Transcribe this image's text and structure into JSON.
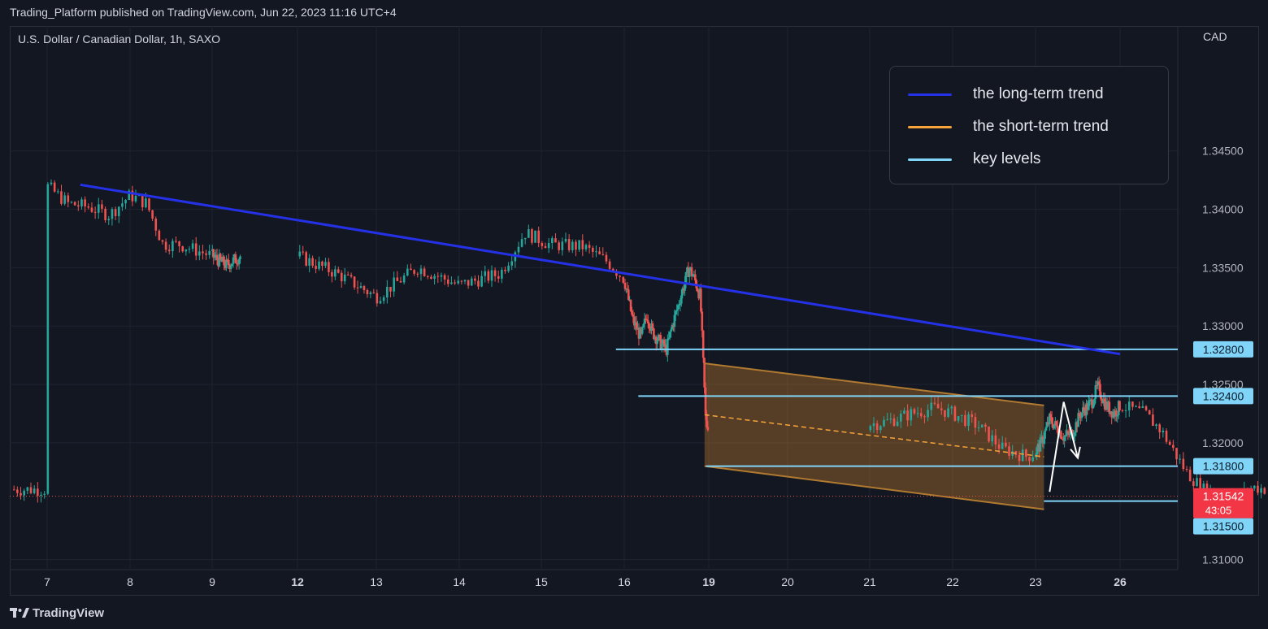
{
  "header": {
    "publisher": "Trading_Platform published on TradingView.com, Jun 22, 2023 11:16 UTC+4"
  },
  "symbol": {
    "title": "U.S. Dollar / Canadian Dollar, 1h, SAXO"
  },
  "axis": {
    "currency": "CAD"
  },
  "legend": {
    "items": [
      {
        "label": "the long-term trend",
        "color": "#2431e6"
      },
      {
        "label": "the short-term trend",
        "color": "#f7a33a"
      },
      {
        "label": "key levels",
        "color": "#7fd4f8"
      }
    ]
  },
  "footer": {
    "brand": "TradingView",
    "logo_icon": "tradingview-logo-icon"
  },
  "chart_data": {
    "type": "candlestick",
    "y_ticks": [
      "1.34500",
      "1.34000",
      "1.33500",
      "1.33000",
      "1.32500",
      "1.32000",
      "1.31000"
    ],
    "y_range": [
      1.3092,
      1.3557
    ],
    "x_ticks": [
      {
        "label": "7",
        "bold": false
      },
      {
        "label": "8",
        "bold": false
      },
      {
        "label": "9",
        "bold": false
      },
      {
        "label": "12",
        "bold": true
      },
      {
        "label": "13",
        "bold": false
      },
      {
        "label": "14",
        "bold": false
      },
      {
        "label": "15",
        "bold": false
      },
      {
        "label": "16",
        "bold": false
      },
      {
        "label": "19",
        "bold": true
      },
      {
        "label": "20",
        "bold": false
      },
      {
        "label": "21",
        "bold": false
      },
      {
        "label": "22",
        "bold": false
      },
      {
        "label": "23",
        "bold": false
      },
      {
        "label": "26",
        "bold": true
      }
    ],
    "price_path": [
      [
        7,
        1.342
      ],
      [
        7.25,
        1.3405
      ],
      [
        7.5,
        1.3402
      ],
      [
        7.75,
        1.3395
      ],
      [
        8,
        1.3412
      ],
      [
        8.2,
        1.3405
      ],
      [
        8.4,
        1.337
      ],
      [
        8.6,
        1.337
      ],
      [
        9,
        1.336
      ],
      [
        9.5,
        1.3352
      ],
      [
        10,
        1.336
      ],
      [
        10.5,
        1.3345
      ],
      [
        11,
        1.3325
      ],
      [
        11.5,
        1.335
      ],
      [
        12,
        1.3335
      ],
      [
        12.5,
        1.3345
      ],
      [
        12.8,
        1.338
      ],
      [
        13.1,
        1.337
      ],
      [
        13.5,
        1.3368
      ],
      [
        13.8,
        1.3355
      ],
      [
        14,
        1.334
      ],
      [
        14.3,
        1.3305
      ],
      [
        14.6,
        1.329
      ],
      [
        14.8,
        1.331
      ],
      [
        15,
        1.3295
      ],
      [
        15.3,
        1.3285
      ],
      [
        15.5,
        1.328
      ],
      [
        15.7,
        1.33
      ],
      [
        16,
        1.3325
      ],
      [
        16.3,
        1.335
      ],
      [
        16.5,
        1.334
      ],
      [
        16.7,
        1.3325
      ],
      [
        16.9,
        1.3215
      ],
      [
        17.2,
        1.3218
      ],
      [
        17.5,
        1.3225
      ],
      [
        17.8,
        1.323
      ],
      [
        18,
        1.3225
      ],
      [
        18.3,
        1.3215
      ],
      [
        18.6,
        1.3195
      ],
      [
        18.9,
        1.3188
      ],
      [
        19.2,
        1.32
      ],
      [
        19.5,
        1.322
      ],
      [
        19.8,
        1.3212
      ],
      [
        20,
        1.3205
      ],
      [
        20.3,
        1.3208
      ],
      [
        20.6,
        1.3225
      ],
      [
        21,
        1.3235
      ],
      [
        21.2,
        1.3248
      ],
      [
        21.5,
        1.3232
      ],
      [
        21.8,
        1.3225
      ],
      [
        22,
        1.3232
      ],
      [
        22.3,
        1.3225
      ],
      [
        22.5,
        1.321
      ],
      [
        22.8,
        1.3175
      ],
      [
        23,
        1.316
      ],
      [
        23.2,
        1.3158
      ],
      [
        23.4,
        1.3152
      ],
      [
        23.6,
        1.3162
      ],
      [
        23.8,
        1.316
      ]
    ],
    "long_term_trend": {
      "from": [
        7.4,
        1.3421
      ],
      "to": [
        26.0,
        1.3276
      ],
      "color": "#2431e6"
    },
    "short_term_channel": {
      "upper": {
        "from": [
          18.85,
          1.3268
        ],
        "to": [
          23.3,
          1.3232
        ]
      },
      "lower": {
        "from": [
          18.85,
          1.318
        ],
        "to": [
          23.3,
          1.3143
        ]
      },
      "mid_dashed": {
        "from": [
          18.85,
          1.3224
        ],
        "to": [
          23.3,
          1.3188
        ]
      },
      "color": "#f7a33a"
    },
    "key_levels": [
      {
        "price": 1.328,
        "from_x": 15.9,
        "label": "1.32800"
      },
      {
        "price": 1.324,
        "from_x": 16.5,
        "label": "1.32400"
      },
      {
        "price": 1.318,
        "from_x": 18.9,
        "label": "1.31800"
      },
      {
        "price": 1.315,
        "from_x": 23.3,
        "label": "1.31500"
      }
    ],
    "current_price": {
      "price": 1.31542,
      "label": "1.31542",
      "countdown": "43:05"
    },
    "projection": {
      "points": [
        [
          23.5,
          1.3158
        ],
        [
          24.0,
          1.3235
        ],
        [
          24.5,
          1.3187
        ]
      ]
    }
  }
}
